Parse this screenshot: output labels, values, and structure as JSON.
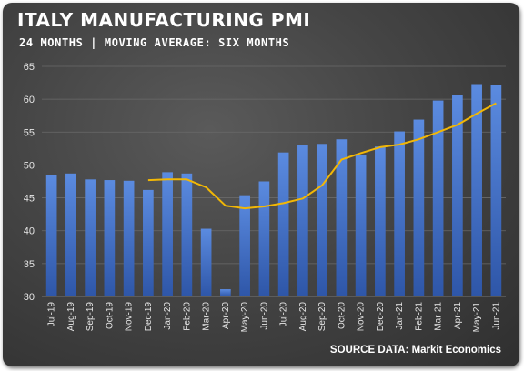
{
  "chart_data": {
    "type": "bar",
    "title": "ITALY MANUFACTURING PMI",
    "subtitle": "24 MONTHS | MOVING AVERAGE: SIX MONTHS",
    "source": "SOURCE DATA: Markit Economics",
    "categories": [
      "Jul-19",
      "Aug-19",
      "Sep-19",
      "Oct-19",
      "Nov-19",
      "Dec-19",
      "Jan-20",
      "Feb-20",
      "Mar-20",
      "Apr-20",
      "May-20",
      "Jun-20",
      "Jul-20",
      "Aug-20",
      "Sep-20",
      "Oct-20",
      "Nov-20",
      "Dec-20",
      "Jan-21",
      "Feb-21",
      "Mar-21",
      "Apr-21",
      "May-21",
      "Jun-21"
    ],
    "series": [
      {
        "type": "bar",
        "values": [
          48.4,
          48.7,
          47.8,
          47.7,
          47.6,
          46.2,
          48.9,
          48.7,
          40.3,
          31.1,
          45.4,
          47.5,
          51.9,
          53.1,
          53.2,
          53.9,
          51.5,
          52.8,
          55.1,
          56.9,
          59.8,
          60.7,
          62.3,
          62.2
        ],
        "color": "#4472c4"
      },
      {
        "type": "line",
        "values": [
          null,
          null,
          null,
          null,
          null,
          47.7,
          47.8,
          47.8,
          46.6,
          43.8,
          43.4,
          43.7,
          44.2,
          44.9,
          46.9,
          50.8,
          51.8,
          52.7,
          53.1,
          53.9,
          55.0,
          56.1,
          57.8,
          59.4
        ],
        "color": "#f2b705"
      }
    ],
    "ylim": [
      30,
      65
    ],
    "yticks": [
      30,
      35,
      40,
      45,
      50,
      55,
      60,
      65
    ],
    "grid": true
  }
}
